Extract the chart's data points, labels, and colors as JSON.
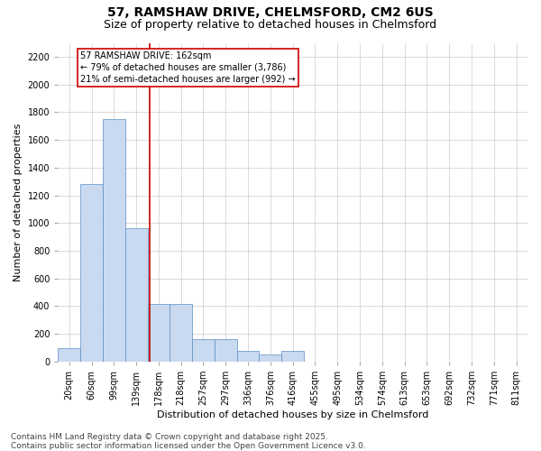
{
  "title_line1": "57, RAMSHAW DRIVE, CHELMSFORD, CM2 6US",
  "title_line2": "Size of property relative to detached houses in Chelmsford",
  "xlabel": "Distribution of detached houses by size in Chelmsford",
  "ylabel": "Number of detached properties",
  "categories": [
    "20sqm",
    "60sqm",
    "99sqm",
    "139sqm",
    "178sqm",
    "218sqm",
    "257sqm",
    "297sqm",
    "336sqm",
    "376sqm",
    "416sqm",
    "455sqm",
    "495sqm",
    "534sqm",
    "574sqm",
    "613sqm",
    "653sqm",
    "692sqm",
    "732sqm",
    "771sqm",
    "811sqm"
  ],
  "values": [
    100,
    1280,
    1750,
    960,
    415,
    415,
    160,
    160,
    75,
    50,
    75,
    0,
    0,
    0,
    0,
    0,
    0,
    0,
    0,
    0,
    0
  ],
  "bar_color": "#c9d9f0",
  "bar_edge_color": "#5b8ec4",
  "red_line_label": "57 RAMSHAW DRIVE: 162sqm",
  "annotation_line2": "← 79% of detached houses are smaller (3,786)",
  "annotation_line3": "21% of semi-detached houses are larger (992) →",
  "annotation_box_color": "#ffffff",
  "annotation_box_edge": "#cc0000",
  "vline_color": "#cc0000",
  "ylim": [
    0,
    2300
  ],
  "yticks": [
    0,
    200,
    400,
    600,
    800,
    1000,
    1200,
    1400,
    1600,
    1800,
    2000,
    2200
  ],
  "footer_line1": "Contains HM Land Registry data © Crown copyright and database right 2025.",
  "footer_line2": "Contains public sector information licensed under the Open Government Licence v3.0.",
  "bg_color": "#ffffff",
  "grid_color": "#cccccc",
  "title_fontsize": 10,
  "subtitle_fontsize": 9,
  "axis_label_fontsize": 8,
  "tick_fontsize": 7,
  "footer_fontsize": 6.5,
  "annotation_fontsize": 7
}
